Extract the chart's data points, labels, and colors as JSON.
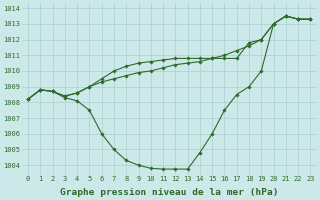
{
  "title": "Graphe pression niveau de la mer (hPa)",
  "x_labels": [
    "0",
    "1",
    "2",
    "3",
    "4",
    "5",
    "6",
    "7",
    "8",
    "9",
    "10",
    "11",
    "12",
    "13",
    "14",
    "15",
    "16",
    "17",
    "18",
    "19",
    "20",
    "21",
    "22",
    "23"
  ],
  "hours": [
    0,
    1,
    2,
    3,
    4,
    5,
    6,
    7,
    8,
    9,
    10,
    11,
    12,
    13,
    14,
    15,
    16,
    17,
    18,
    19,
    20,
    21,
    22,
    23
  ],
  "line_dip": [
    1008.2,
    1008.8,
    1008.7,
    1008.3,
    1008.1,
    1007.5,
    1006.0,
    1005.0,
    1004.3,
    1004.0,
    1003.8,
    1003.75,
    1003.75,
    1003.75,
    1004.8,
    1006.0,
    1007.5,
    1008.5,
    1009.0,
    1010.0,
    1013.0,
    1013.5,
    1013.3,
    1013.3
  ],
  "line_straight": [
    1008.2,
    1008.8,
    1008.7,
    1008.4,
    1008.6,
    1009.0,
    1009.3,
    1009.5,
    1009.7,
    1009.9,
    1010.0,
    1010.2,
    1010.4,
    1010.5,
    1010.6,
    1010.8,
    1011.0,
    1011.3,
    1011.6,
    1012.0,
    1013.0,
    1013.5,
    1013.3,
    1013.3
  ],
  "line_flat": [
    1008.2,
    1008.8,
    1008.7,
    1008.4,
    1008.6,
    1009.0,
    1009.5,
    1010.0,
    1010.3,
    1010.5,
    1010.6,
    1010.7,
    1010.8,
    1010.8,
    1010.8,
    1010.8,
    1010.8,
    1010.8,
    1011.8,
    1012.0,
    1013.0,
    1013.5,
    1013.3,
    1013.3
  ],
  "line_color": "#2d6a2d",
  "bg_color": "#cce8e8",
  "grid_color": "#a8d0d0",
  "ylim": [
    1003.4,
    1014.3
  ],
  "yticks": [
    1004,
    1005,
    1006,
    1007,
    1008,
    1009,
    1010,
    1011,
    1012,
    1013,
    1014
  ],
  "marker": "D",
  "marker_size": 1.8,
  "linewidth": 0.8,
  "title_fontsize": 6.8,
  "tick_fontsize": 5.0
}
